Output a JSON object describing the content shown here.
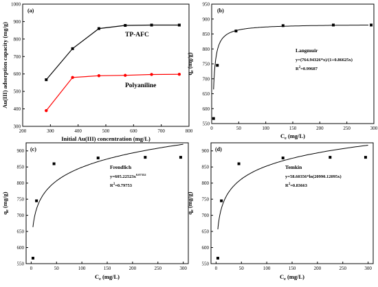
{
  "chart_data": [
    {
      "panel": "(a)",
      "type": "line",
      "xlabel": "Initial Au(III) concentration (mg/L)",
      "ylabel": "Au(III) adsorption capacity (mg/g)",
      "xlim": [
        200,
        800
      ],
      "ylim": [
        300,
        1000
      ],
      "xticks": [
        "200",
        "300",
        "400",
        "500",
        "600",
        "700",
        "800"
      ],
      "yticks": [
        "300",
        "400",
        "500",
        "600",
        "700",
        "800",
        "900",
        "1000"
      ],
      "series": [
        {
          "name": "TP-AFC",
          "color": "#000000",
          "marker": "square",
          "x": [
            285,
            380,
            475,
            570,
            665,
            765
          ],
          "y": [
            567,
            745,
            860,
            878,
            880,
            880
          ]
        },
        {
          "name": "Polyaniline",
          "color": "#ff0000",
          "marker": "circle",
          "x": [
            285,
            380,
            475,
            570,
            665,
            765
          ],
          "y": [
            390,
            580,
            590,
            592,
            597,
            598
          ]
        }
      ]
    },
    {
      "panel": "(b)",
      "type": "scatter",
      "xlabel": "Ce (mg/L)",
      "ylabel": "qe (mg/g)",
      "xlim": [
        0,
        300
      ],
      "ylim": [
        550,
        950
      ],
      "xticks": [
        "0",
        "50",
        "100",
        "150",
        "200",
        "250",
        "300"
      ],
      "yticks": [
        "550",
        "600",
        "650",
        "700",
        "750",
        "800",
        "850",
        "900",
        "950"
      ],
      "points": {
        "x": [
          3.5,
          10.5,
          45,
          132,
          225,
          295
        ],
        "y": [
          567,
          745,
          860,
          878,
          880,
          880
        ]
      },
      "fit": {
        "model": "langmuir",
        "qm": 883.5,
        "kl": 0.86625,
        "x0": 3.5
      },
      "annotation": [
        "Langmuir",
        "y=(764.94326*x)/(1+0.86625x)",
        "R",
        "2",
        "=0.99687"
      ]
    },
    {
      "panel": "(c)",
      "type": "scatter",
      "xlabel": "Ce (mg/L)",
      "ylabel": "qe (mg/g)",
      "xlim": [
        -10,
        310
      ],
      "ylim": [
        550,
        925
      ],
      "xticks": [
        "0",
        "50",
        "100",
        "150",
        "200",
        "250",
        "300"
      ],
      "yticks": [
        "550",
        "600",
        "650",
        "700",
        "750",
        "800",
        "850",
        "900"
      ],
      "points": {
        "x": [
          3.5,
          10.5,
          45,
          132,
          225,
          295
        ],
        "y": [
          567,
          745,
          860,
          878,
          880,
          880
        ]
      },
      "fit": {
        "model": "freundlich",
        "a": 605.22523,
        "b": 0.07352,
        "x0": 3.5
      },
      "annotation": [
        "Frendlich",
        "y=605.22523x",
        "0.07352",
        "R",
        "2",
        "=0.79753"
      ]
    },
    {
      "panel": "(d)",
      "type": "scatter",
      "xlabel": "Ce (mg/L)",
      "ylabel": "qe (mg/g)",
      "xlim": [
        -10,
        310
      ],
      "ylim": [
        550,
        925
      ],
      "xticks": [
        "0",
        "50",
        "100",
        "150",
        "200",
        "250",
        "300"
      ],
      "yticks": [
        "550",
        "600",
        "650",
        "700",
        "750",
        "800",
        "850",
        "900"
      ],
      "points": {
        "x": [
          3.5,
          10.5,
          45,
          132,
          225,
          295
        ],
        "y": [
          567,
          745,
          860,
          878,
          880,
          880
        ]
      },
      "fit": {
        "model": "temkin",
        "a": 58.60356,
        "b": 20990.12095,
        "x0": 3.5
      },
      "annotation": [
        "Temkin",
        "y=58.60356*ln(20990.12095x)",
        "R",
        "2",
        "=0.83663"
      ]
    }
  ]
}
